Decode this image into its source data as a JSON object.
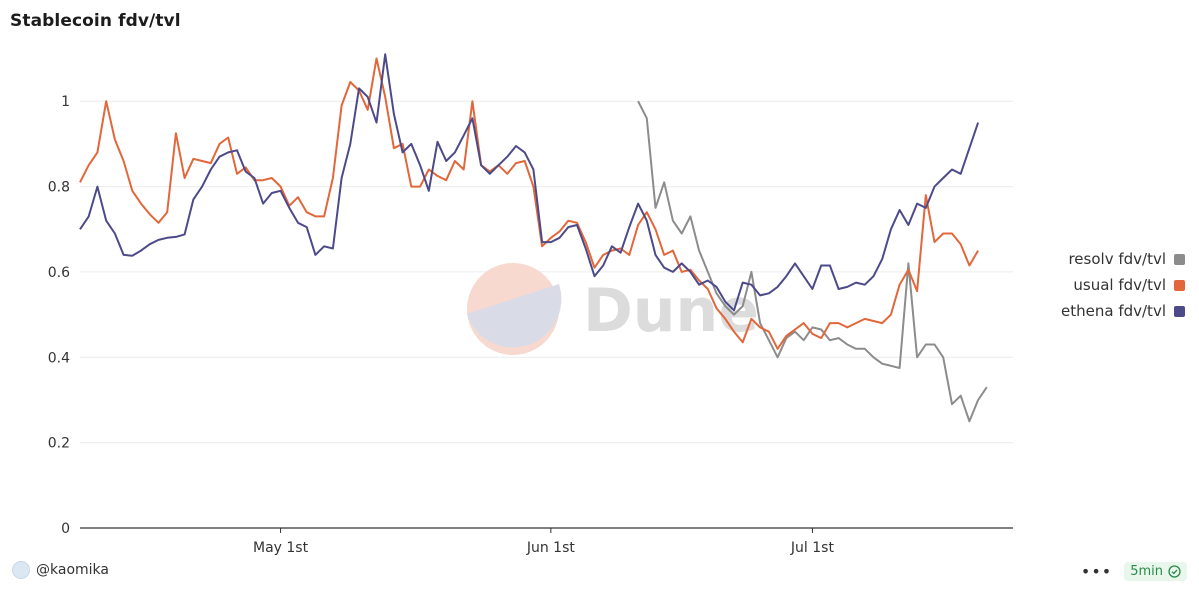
{
  "title": "Stablecoin fdv/tvl",
  "footer": {
    "user": "@kaomika",
    "refresh": "5min"
  },
  "watermark": "Dune",
  "legend": [
    {
      "label": "resolv fdv/tvl",
      "color": "#8c8c8c"
    },
    {
      "label": "usual fdv/tvl",
      "color": "#e2673a"
    },
    {
      "label": "ethena fdv/tvl",
      "color": "#4d4a8a"
    }
  ],
  "chart_data": {
    "type": "line",
    "title": "Stablecoin fdv/tvl",
    "xlabel": "",
    "ylabel": "",
    "x_start": "2025-04-08",
    "x_end": "2025-07-24",
    "x_ticks": [
      {
        "date": "2025-05-01",
        "label": "May 1st"
      },
      {
        "date": "2025-06-01",
        "label": "Jun 1st"
      },
      {
        "date": "2025-07-01",
        "label": "Jul 1st"
      }
    ],
    "y_ticks": [
      0,
      0.2,
      0.4,
      0.6,
      0.8,
      1
    ],
    "ylim": [
      0,
      1.12
    ],
    "grid": true,
    "legend_position": "right",
    "series": [
      {
        "name": "ethena fdv/tvl",
        "color": "#4d4a8a",
        "x_start": "2025-04-08",
        "values": [
          0.7,
          0.73,
          0.8,
          0.72,
          0.69,
          0.64,
          0.638,
          0.65,
          0.665,
          0.675,
          0.68,
          0.682,
          0.688,
          0.77,
          0.8,
          0.84,
          0.87,
          0.88,
          0.885,
          0.835,
          0.82,
          0.76,
          0.785,
          0.79,
          0.75,
          0.715,
          0.705,
          0.64,
          0.66,
          0.655,
          0.82,
          0.9,
          1.03,
          1.01,
          0.95,
          1.11,
          0.97,
          0.88,
          0.9,
          0.85,
          0.79,
          0.905,
          0.86,
          0.88,
          0.92,
          0.96,
          0.85,
          0.83,
          0.85,
          0.87,
          0.895,
          0.88,
          0.84,
          0.67,
          0.67,
          0.68,
          0.705,
          0.71,
          0.655,
          0.59,
          0.615,
          0.66,
          0.645,
          0.705,
          0.76,
          0.72,
          0.64,
          0.61,
          0.6,
          0.62,
          0.6,
          0.57,
          0.58,
          0.565,
          0.53,
          0.51,
          0.575,
          0.57,
          0.545,
          0.55,
          0.565,
          0.59,
          0.62,
          0.59,
          0.56,
          0.615,
          0.615,
          0.56,
          0.565,
          0.575,
          0.57,
          0.59,
          0.63,
          0.7,
          0.745,
          0.71,
          0.76,
          0.75,
          0.8,
          0.82,
          0.84,
          0.83,
          0.89,
          0.95
        ]
      },
      {
        "name": "usual fdv/tvl",
        "color": "#e2673a",
        "x_start": "2025-04-08",
        "values": [
          0.81,
          0.85,
          0.88,
          1.0,
          0.91,
          0.86,
          0.79,
          0.76,
          0.735,
          0.715,
          0.74,
          0.925,
          0.82,
          0.865,
          0.86,
          0.855,
          0.9,
          0.915,
          0.83,
          0.845,
          0.815,
          0.815,
          0.82,
          0.8,
          0.755,
          0.775,
          0.74,
          0.73,
          0.73,
          0.82,
          0.99,
          1.045,
          1.025,
          0.98,
          1.1,
          1.01,
          0.89,
          0.9,
          0.8,
          0.8,
          0.84,
          0.825,
          0.815,
          0.86,
          0.84,
          1.0,
          0.85,
          0.835,
          0.85,
          0.83,
          0.855,
          0.86,
          0.8,
          0.66,
          0.68,
          0.695,
          0.72,
          0.715,
          0.67,
          0.61,
          0.64,
          0.65,
          0.655,
          0.64,
          0.71,
          0.74,
          0.7,
          0.64,
          0.65,
          0.6,
          0.605,
          0.58,
          0.56,
          0.515,
          0.49,
          0.46,
          0.435,
          0.49,
          0.47,
          0.46,
          0.42,
          0.45,
          0.465,
          0.48,
          0.455,
          0.445,
          0.48,
          0.48,
          0.47,
          0.48,
          0.49,
          0.485,
          0.48,
          0.5,
          0.57,
          0.605,
          0.555,
          0.78,
          0.67,
          0.69,
          0.69,
          0.665,
          0.615,
          0.65
        ]
      },
      {
        "name": "resolv fdv/tvl",
        "color": "#8c8c8c",
        "x_start": "2025-06-11",
        "values": [
          1.0,
          0.96,
          0.75,
          0.81,
          0.72,
          0.69,
          0.73,
          0.65,
          0.6,
          0.55,
          0.52,
          0.5,
          0.52,
          0.6,
          0.48,
          0.44,
          0.4,
          0.445,
          0.46,
          0.44,
          0.47,
          0.465,
          0.44,
          0.445,
          0.43,
          0.42,
          0.42,
          0.4,
          0.385,
          0.38,
          0.375,
          0.62,
          0.4,
          0.43,
          0.43,
          0.4,
          0.29,
          0.31,
          0.25,
          0.3,
          0.33
        ]
      }
    ]
  }
}
